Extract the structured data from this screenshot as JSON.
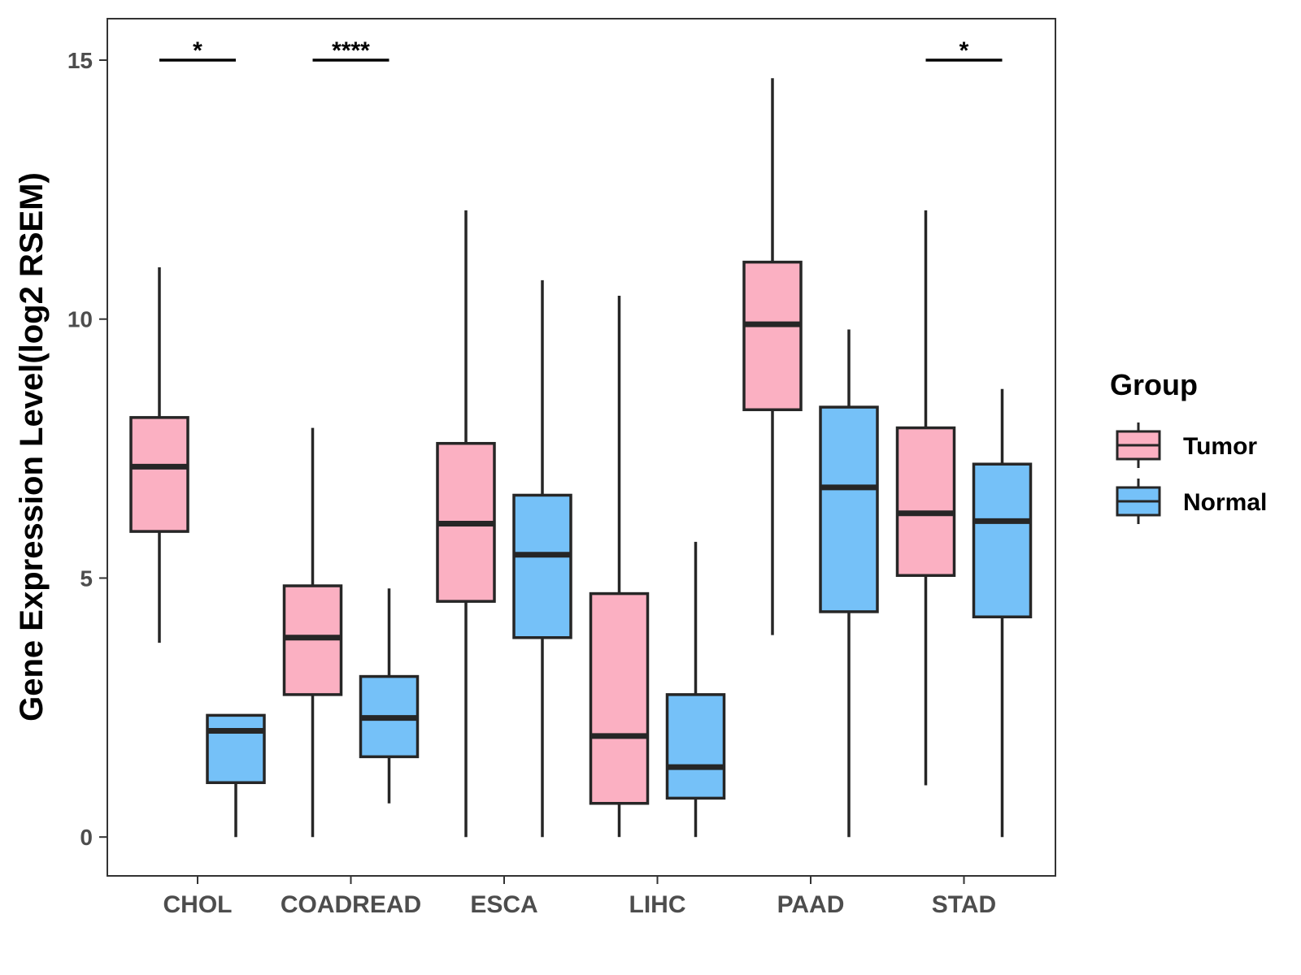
{
  "chart_data": {
    "type": "boxplot",
    "title": "",
    "xlabel": "",
    "ylabel": "Gene Expression Level(log2 RSEM)",
    "ylim": [
      -0.75,
      15.8
    ],
    "yticks": [
      0,
      5,
      10,
      15
    ],
    "categories": [
      "CHOL",
      "COADREAD",
      "ESCA",
      "LIHC",
      "PAAD",
      "STAD"
    ],
    "legend": {
      "title": "Group",
      "position": "right",
      "entries": [
        {
          "name": "Tumor",
          "color": "#fbb0c2"
        },
        {
          "name": "Normal",
          "color": "#75c1f8"
        }
      ]
    },
    "series": [
      {
        "name": "Tumor",
        "color": "#fbb0c2",
        "boxes": [
          {
            "category": "CHOL",
            "min": 3.75,
            "q1": 5.9,
            "median": 7.15,
            "q3": 8.1,
            "max": 11.0
          },
          {
            "category": "COADREAD",
            "min": 0.0,
            "q1": 2.75,
            "median": 3.85,
            "q3": 4.85,
            "max": 7.9
          },
          {
            "category": "ESCA",
            "min": 0.0,
            "q1": 4.55,
            "median": 6.05,
            "q3": 7.6,
            "max": 12.1
          },
          {
            "category": "LIHC",
            "min": 0.0,
            "q1": 0.65,
            "median": 1.95,
            "q3": 4.7,
            "max": 10.45
          },
          {
            "category": "PAAD",
            "min": 3.9,
            "q1": 8.25,
            "median": 9.9,
            "q3": 11.1,
            "max": 14.65
          },
          {
            "category": "STAD",
            "min": 1.0,
            "q1": 5.05,
            "median": 6.25,
            "q3": 7.9,
            "max": 12.1
          }
        ]
      },
      {
        "name": "Normal",
        "color": "#75c1f8",
        "boxes": [
          {
            "category": "CHOL",
            "min": 0.0,
            "q1": 1.05,
            "median": 2.05,
            "q3": 2.35,
            "max": 2.35
          },
          {
            "category": "COADREAD",
            "min": 0.65,
            "q1": 1.55,
            "median": 2.3,
            "q3": 3.1,
            "max": 4.8
          },
          {
            "category": "ESCA",
            "min": 0.0,
            "q1": 3.85,
            "median": 5.45,
            "q3": 6.6,
            "max": 10.75
          },
          {
            "category": "LIHC",
            "min": 0.0,
            "q1": 0.75,
            "median": 1.35,
            "q3": 2.75,
            "max": 5.7
          },
          {
            "category": "PAAD",
            "min": 0.0,
            "q1": 4.35,
            "median": 6.75,
            "q3": 8.3,
            "max": 9.8
          },
          {
            "category": "STAD",
            "min": 0.0,
            "q1": 4.25,
            "median": 6.1,
            "q3": 7.2,
            "max": 8.65
          }
        ]
      }
    ],
    "significance": [
      {
        "category": "CHOL",
        "label": "*",
        "y": 15
      },
      {
        "category": "COADREAD",
        "label": "****",
        "y": 15
      },
      {
        "category": "STAD",
        "label": "*",
        "y": 15
      }
    ]
  }
}
